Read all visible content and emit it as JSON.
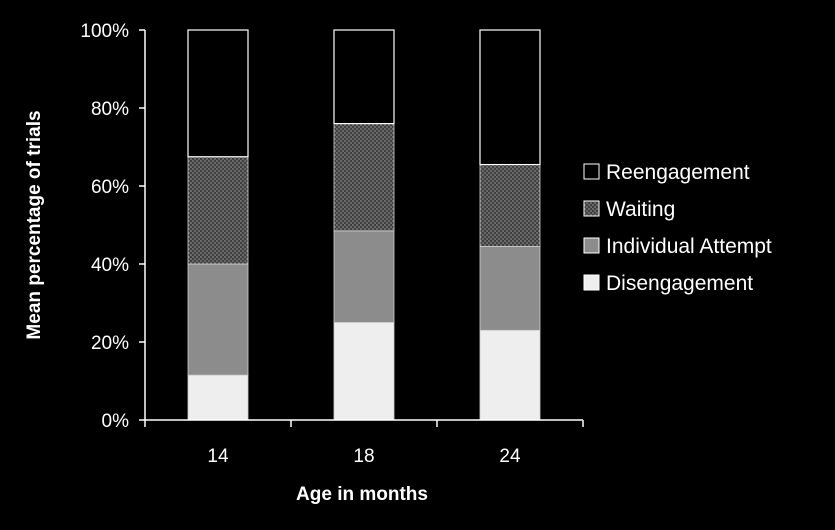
{
  "chart_data": {
    "type": "bar",
    "stacked": true,
    "categories": [
      "14",
      "18",
      "24"
    ],
    "series": [
      {
        "name": "Disengagement",
        "values": [
          11.5,
          25,
          23
        ],
        "color": "#eeeeee",
        "pattern": "solid"
      },
      {
        "name": "Individual Attempt",
        "values": [
          28.5,
          23.5,
          21.5
        ],
        "color": "#8c8c8c",
        "pattern": "solid"
      },
      {
        "name": "Waiting",
        "values": [
          27.5,
          27.5,
          21
        ],
        "color": "#5a5a5a",
        "pattern": "dots"
      },
      {
        "name": "Reengagement",
        "values": [
          32.5,
          24,
          34.5
        ],
        "color": "#000000",
        "pattern": "outline"
      }
    ],
    "xlabel": "Age in months",
    "ylabel": "Mean percentage of trials",
    "ylim": [
      0,
      100
    ],
    "yticks": [
      "0%",
      "20%",
      "40%",
      "60%",
      "80%",
      "100%"
    ],
    "legend": {
      "position": "right",
      "order": [
        "Reengagement",
        "Waiting",
        "Individual Attempt",
        "Disengagement"
      ]
    },
    "grid": false,
    "background": "#000000",
    "axis_color": "#ffffff"
  }
}
